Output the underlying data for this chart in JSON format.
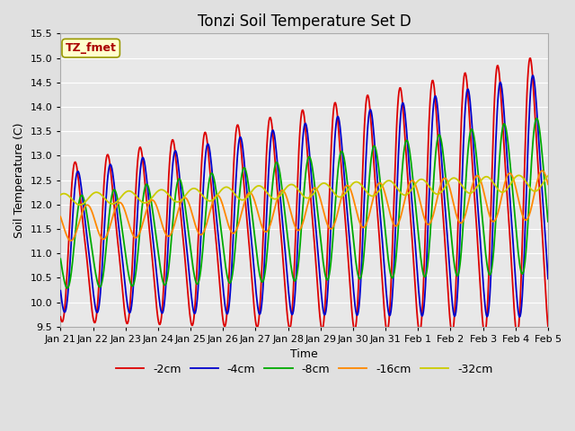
{
  "title": "Tonzi Soil Temperature Set D",
  "xlabel": "Time",
  "ylabel": "Soil Temperature (C)",
  "ylim": [
    9.5,
    15.5
  ],
  "xlim": [
    0,
    15
  ],
  "annotation_text": "TZ_fmet",
  "annotation_bg": "#ffffcc",
  "annotation_border": "#999900",
  "annotation_text_color": "#aa0000",
  "series_colors": {
    "-2cm": "#dd0000",
    "-4cm": "#0000cc",
    "-8cm": "#00aa00",
    "-16cm": "#ff8800",
    "-32cm": "#cccc00"
  },
  "background_color": "#e0e0e0",
  "plot_bg_color": "#e8e8e8",
  "grid_color": "#ffffff",
  "tick_label_fontsize": 8,
  "legend_fontsize": 9,
  "title_fontsize": 12,
  "date_labels": [
    "Jan 21",
    "Jan 22",
    "Jan 23",
    "Jan 24",
    "Jan 25",
    "Jan 26",
    "Jan 27",
    "Jan 28",
    "Jan 29",
    "Jan 30",
    "Jan 31",
    "Feb 1",
    "Feb 2",
    "Feb 3",
    "Feb 4",
    "Feb 5"
  ],
  "tick_positions": [
    0,
    1,
    2,
    3,
    4,
    5,
    6,
    7,
    8,
    9,
    10,
    11,
    12,
    13,
    14,
    15
  ]
}
